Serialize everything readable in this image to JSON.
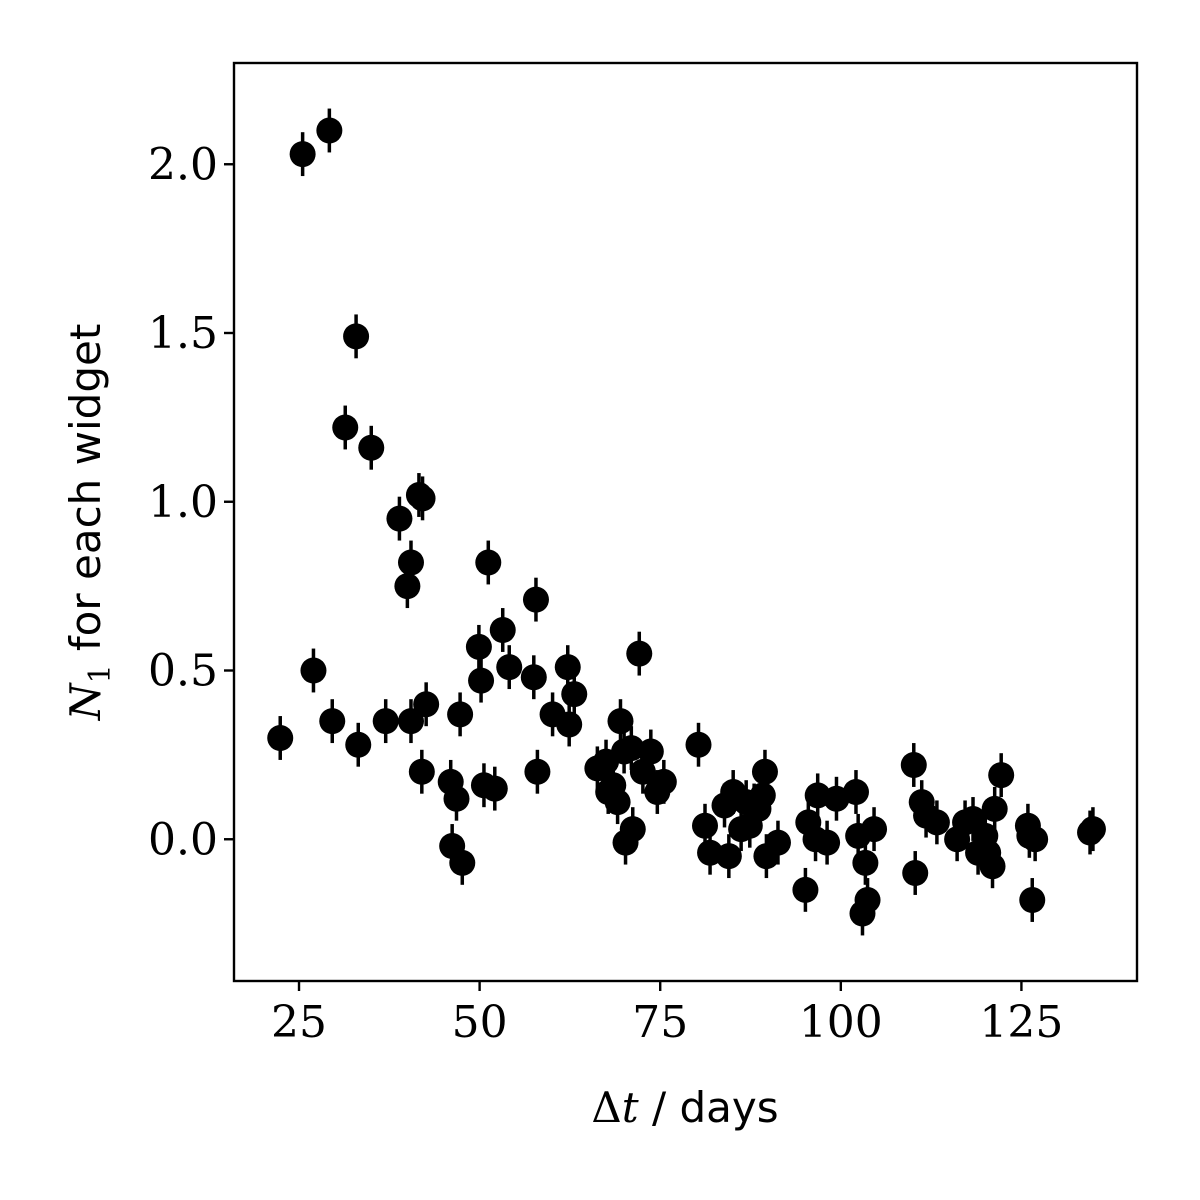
{
  "chart_data": {
    "type": "scatter",
    "title": "",
    "xlabel": {
      "symbol": "Δ",
      "var": "t",
      "rest": " / days"
    },
    "ylabel": {
      "var": "N",
      "sub": "1",
      "rest": " for each widget"
    },
    "xlim": [
      16,
      141
    ],
    "ylim": [
      -0.42,
      2.3
    ],
    "xticks": [
      25,
      50,
      75,
      100,
      125
    ],
    "xtick_labels": [
      "25",
      "50",
      "75",
      "100",
      "125"
    ],
    "yticks": [
      0.0,
      0.5,
      1.0,
      1.5,
      2.0
    ],
    "ytick_labels": [
      "0.0",
      "0.5",
      "1.0",
      "1.5",
      "2.0"
    ],
    "grid": false,
    "legend": "none",
    "marker_color": "#000000",
    "error_y": 0.065,
    "points": [
      {
        "x": 22.4,
        "y": 0.3
      },
      {
        "x": 25.5,
        "y": 2.03
      },
      {
        "x": 27.0,
        "y": 0.5
      },
      {
        "x": 29.2,
        "y": 2.1
      },
      {
        "x": 29.6,
        "y": 0.35
      },
      {
        "x": 31.4,
        "y": 1.22
      },
      {
        "x": 32.9,
        "y": 1.49
      },
      {
        "x": 33.2,
        "y": 0.28
      },
      {
        "x": 35.0,
        "y": 1.16
      },
      {
        "x": 37.0,
        "y": 0.35
      },
      {
        "x": 38.9,
        "y": 0.95
      },
      {
        "x": 40.0,
        "y": 0.75
      },
      {
        "x": 40.5,
        "y": 0.82
      },
      {
        "x": 40.5,
        "y": 0.35
      },
      {
        "x": 41.6,
        "y": 1.02
      },
      {
        "x": 42.0,
        "y": 0.2
      },
      {
        "x": 42.1,
        "y": 1.01
      },
      {
        "x": 42.6,
        "y": 0.4
      },
      {
        "x": 46.0,
        "y": 0.17
      },
      {
        "x": 46.2,
        "y": -0.02
      },
      {
        "x": 46.8,
        "y": 0.12
      },
      {
        "x": 47.3,
        "y": 0.37
      },
      {
        "x": 47.6,
        "y": -0.07
      },
      {
        "x": 49.9,
        "y": 0.57
      },
      {
        "x": 50.2,
        "y": 0.47
      },
      {
        "x": 50.6,
        "y": 0.16
      },
      {
        "x": 51.2,
        "y": 0.82
      },
      {
        "x": 52.1,
        "y": 0.15
      },
      {
        "x": 53.2,
        "y": 0.62
      },
      {
        "x": 54.1,
        "y": 0.51
      },
      {
        "x": 57.5,
        "y": 0.48
      },
      {
        "x": 57.8,
        "y": 0.71
      },
      {
        "x": 58.0,
        "y": 0.2
      },
      {
        "x": 60.1,
        "y": 0.37
      },
      {
        "x": 62.2,
        "y": 0.51
      },
      {
        "x": 62.4,
        "y": 0.34
      },
      {
        "x": 63.1,
        "y": 0.43
      },
      {
        "x": 66.3,
        "y": 0.21
      },
      {
        "x": 67.5,
        "y": 0.23
      },
      {
        "x": 67.8,
        "y": 0.14
      },
      {
        "x": 68.5,
        "y": 0.16
      },
      {
        "x": 69.1,
        "y": 0.11
      },
      {
        "x": 69.5,
        "y": 0.35
      },
      {
        "x": 70.0,
        "y": 0.26
      },
      {
        "x": 70.2,
        "y": -0.01
      },
      {
        "x": 71.0,
        "y": 0.27
      },
      {
        "x": 71.2,
        "y": 0.03
      },
      {
        "x": 72.1,
        "y": 0.55
      },
      {
        "x": 72.6,
        "y": 0.2
      },
      {
        "x": 73.7,
        "y": 0.26
      },
      {
        "x": 74.6,
        "y": 0.14
      },
      {
        "x": 75.5,
        "y": 0.17
      },
      {
        "x": 80.3,
        "y": 0.28
      },
      {
        "x": 81.2,
        "y": 0.04
      },
      {
        "x": 81.9,
        "y": -0.04
      },
      {
        "x": 83.9,
        "y": 0.1
      },
      {
        "x": 84.5,
        "y": -0.05
      },
      {
        "x": 85.1,
        "y": 0.14
      },
      {
        "x": 86.2,
        "y": 0.03
      },
      {
        "x": 86.9,
        "y": 0.11
      },
      {
        "x": 87.4,
        "y": 0.04
      },
      {
        "x": 88.0,
        "y": 0.1
      },
      {
        "x": 88.6,
        "y": 0.09
      },
      {
        "x": 89.2,
        "y": 0.13
      },
      {
        "x": 89.5,
        "y": 0.2
      },
      {
        "x": 89.7,
        "y": -0.05
      },
      {
        "x": 91.3,
        "y": -0.01
      },
      {
        "x": 95.1,
        "y": -0.15
      },
      {
        "x": 95.5,
        "y": 0.05
      },
      {
        "x": 96.5,
        "y": 0.0
      },
      {
        "x": 96.8,
        "y": 0.13
      },
      {
        "x": 98.1,
        "y": -0.01
      },
      {
        "x": 99.4,
        "y": 0.12
      },
      {
        "x": 102.1,
        "y": 0.14
      },
      {
        "x": 102.4,
        "y": 0.01
      },
      {
        "x": 103.0,
        "y": -0.22
      },
      {
        "x": 103.4,
        "y": -0.07
      },
      {
        "x": 103.7,
        "y": -0.18
      },
      {
        "x": 104.6,
        "y": 0.03
      },
      {
        "x": 110.1,
        "y": 0.22
      },
      {
        "x": 110.3,
        "y": -0.1
      },
      {
        "x": 111.2,
        "y": 0.11
      },
      {
        "x": 111.8,
        "y": 0.07
      },
      {
        "x": 113.3,
        "y": 0.05
      },
      {
        "x": 116.1,
        "y": 0.0
      },
      {
        "x": 117.2,
        "y": 0.05
      },
      {
        "x": 118.3,
        "y": 0.06
      },
      {
        "x": 119.0,
        "y": -0.04
      },
      {
        "x": 120.0,
        "y": 0.01
      },
      {
        "x": 120.4,
        "y": -0.04
      },
      {
        "x": 121.0,
        "y": -0.08
      },
      {
        "x": 121.3,
        "y": 0.09
      },
      {
        "x": 122.2,
        "y": 0.19
      },
      {
        "x": 125.9,
        "y": 0.04
      },
      {
        "x": 126.1,
        "y": 0.01
      },
      {
        "x": 126.5,
        "y": -0.18
      },
      {
        "x": 126.9,
        "y": 0.0
      },
      {
        "x": 134.5,
        "y": 0.02
      },
      {
        "x": 134.9,
        "y": 0.03
      }
    ]
  }
}
